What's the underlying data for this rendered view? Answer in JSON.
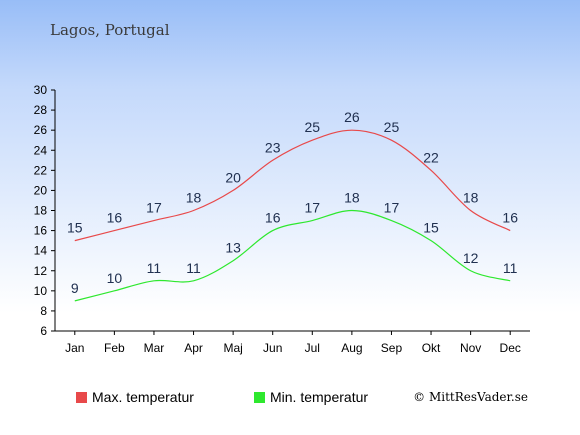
{
  "chart_data": {
    "type": "line",
    "title": "Lagos, Portugal",
    "categories": [
      "Jan",
      "Feb",
      "Mar",
      "Apr",
      "Maj",
      "Jun",
      "Jul",
      "Aug",
      "Sep",
      "Okt",
      "Nov",
      "Dec"
    ],
    "series": [
      {
        "name": "Max. temperatur",
        "color": "#e8494a",
        "values": [
          15,
          16,
          17,
          18,
          20,
          23,
          25,
          26,
          25,
          22,
          18,
          16
        ]
      },
      {
        "name": "Min. temperatur",
        "color": "#2ee82e",
        "values": [
          9,
          10,
          11,
          11,
          13,
          16,
          17,
          18,
          17,
          15,
          12,
          11
        ]
      }
    ],
    "ylim": [
      6,
      30
    ],
    "yticks": [
      6,
      8,
      10,
      12,
      14,
      16,
      18,
      20,
      22,
      24,
      26,
      28,
      30
    ],
    "grid": false,
    "legend": "bottom"
  },
  "credit": "© MittResVader.se"
}
